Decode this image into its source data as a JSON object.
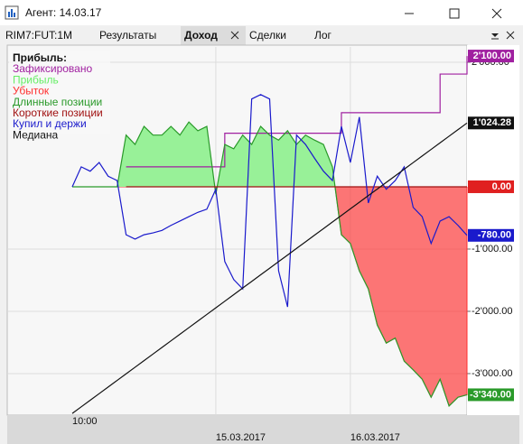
{
  "window_title": "Агент: 14.03.17",
  "tabs": [
    "RIM7:FUT:1M",
    "Результаты",
    "Доход",
    "Сделки",
    "Лог"
  ],
  "active_tab": 2,
  "chart_data": {
    "type": "line",
    "legend_title": "Прибыль:",
    "categories": [
      "10:00",
      null,
      null,
      null,
      null,
      null,
      null,
      null,
      null,
      null,
      null,
      null,
      null,
      null,
      null,
      null,
      "15.03.2017",
      null,
      null,
      null,
      null,
      null,
      null,
      null,
      null,
      null,
      null,
      null,
      null,
      null,
      null,
      "16.03.2017",
      null,
      null,
      null,
      null,
      null,
      null,
      null,
      null,
      null,
      null,
      null,
      null,
      null
    ],
    "ylim": [
      -3667,
      2246
    ],
    "yticks": [
      {
        "value": 2000,
        "label": "2'000.00"
      },
      {
        "value": -1000,
        "label": "-1'000.00"
      },
      {
        "value": -2000,
        "label": "-2'000.00"
      },
      {
        "value": -3000,
        "label": "-3'000.00"
      }
    ],
    "grid": true,
    "legend": "top-left",
    "series": [
      {
        "name": "Зафиксировано",
        "color": "#a020a0",
        "style": "step",
        "values": [
          null,
          null,
          null,
          null,
          null,
          null,
          320,
          320,
          320,
          320,
          320,
          320,
          320,
          320,
          320,
          320,
          320,
          860,
          860,
          860,
          860,
          860,
          860,
          860,
          860,
          860,
          860,
          860,
          860,
          860,
          1190,
          1190,
          1190,
          1190,
          1190,
          1190,
          1190,
          1190,
          1190,
          1190,
          1190,
          1810,
          1810,
          1810,
          2100
        ],
        "value_labels": [
          null,
          null,
          null,
          null,
          null,
          null,
          null,
          null,
          null,
          null,
          null,
          null,
          null,
          null,
          null,
          null,
          null,
          null,
          null,
          null,
          null,
          null,
          null,
          null,
          null,
          null,
          null,
          null,
          null,
          null,
          null,
          null,
          null,
          null,
          null,
          null,
          null,
          null,
          null,
          null,
          null,
          null,
          null,
          null,
          "2'100.00"
        ]
      },
      {
        "name": "Прибыль",
        "color": "#66ee66",
        "style": "fill-above"
      },
      {
        "name": "Убыток",
        "color": "#ff3030",
        "style": "fill-below"
      },
      {
        "name": "Длинные позиции",
        "color": "#2a9a2a",
        "style": "line",
        "values": [
          0,
          0,
          0,
          0,
          0,
          0,
          830,
          680,
          970,
          830,
          830,
          970,
          830,
          1040,
          900,
          970,
          -120,
          680,
          610,
          830,
          680,
          970,
          830,
          750,
          900,
          680,
          830,
          750,
          680,
          320,
          -770,
          -910,
          -1350,
          -1640,
          -2220,
          -2510,
          -2430,
          -2800,
          -2940,
          -3090,
          -3380,
          -3090,
          -3520,
          -3380,
          -3340
        ],
        "value_labels": [
          null,
          null,
          null,
          null,
          null,
          null,
          null,
          null,
          null,
          null,
          null,
          null,
          null,
          null,
          null,
          null,
          null,
          null,
          null,
          null,
          null,
          null,
          null,
          null,
          null,
          null,
          null,
          null,
          null,
          null,
          null,
          null,
          null,
          null,
          null,
          null,
          null,
          null,
          null,
          null,
          null,
          null,
          null,
          null,
          "-3'340.00"
        ]
      },
      {
        "name": "Короткие позиции",
        "color": "#a01010",
        "style": "line",
        "tag_color": "#e02020",
        "values": [
          null,
          null,
          null,
          null,
          null,
          null,
          0,
          0,
          0,
          0,
          0,
          0,
          0,
          0,
          0,
          0,
          0,
          0,
          0,
          0,
          0,
          0,
          0,
          0,
          0,
          0,
          0,
          0,
          0,
          0,
          0,
          0,
          0,
          0,
          0,
          0,
          0,
          0,
          0,
          0,
          0,
          0,
          0,
          0,
          0
        ],
        "value_labels": [
          null,
          null,
          null,
          null,
          null,
          null,
          null,
          null,
          null,
          null,
          null,
          null,
          null,
          null,
          null,
          null,
          null,
          null,
          null,
          null,
          null,
          null,
          null,
          null,
          null,
          null,
          null,
          null,
          null,
          null,
          null,
          null,
          null,
          null,
          null,
          null,
          null,
          null,
          null,
          null,
          null,
          null,
          null,
          null,
          "0.00"
        ]
      },
      {
        "name": "Купил и держи",
        "color": "#1a1acc",
        "style": "line",
        "values": [
          0,
          320,
          250,
          390,
          170,
          100,
          -770,
          -840,
          -770,
          -740,
          -700,
          -620,
          -550,
          -480,
          -410,
          -360,
          -40,
          -1200,
          -1490,
          -1640,
          1410,
          1480,
          1410,
          -1350,
          -1930,
          830,
          680,
          460,
          250,
          100,
          970,
          390,
          1120,
          -260,
          170,
          -40,
          100,
          320,
          -330,
          -480,
          -910,
          -550,
          -480,
          -620,
          -780
        ],
        "value_labels": [
          null,
          null,
          null,
          null,
          null,
          null,
          null,
          null,
          null,
          null,
          null,
          null,
          null,
          null,
          null,
          null,
          null,
          null,
          null,
          null,
          null,
          null,
          null,
          null,
          null,
          null,
          null,
          null,
          null,
          null,
          null,
          null,
          null,
          null,
          null,
          null,
          null,
          null,
          null,
          null,
          null,
          null,
          null,
          null,
          "-780.00"
        ]
      },
      {
        "name": "Медиана",
        "color": "#111111",
        "style": "line",
        "values": [
          -3640,
          -3534,
          -3428,
          -3322,
          -3216,
          -3110,
          -3004,
          -2898,
          -2792,
          -2686,
          -2580,
          -2474,
          -2368,
          -2262,
          -2156,
          -2050,
          -1944,
          -1838,
          -1732,
          -1626,
          -1520,
          -1414,
          -1308,
          -1202,
          -1096,
          -990,
          -884,
          -778,
          -672,
          -566,
          -460,
          -354,
          -248,
          -142,
          -36,
          70,
          176,
          282,
          388,
          494,
          600,
          706,
          812,
          918,
          1024.28
        ],
        "value_labels": [
          null,
          null,
          null,
          null,
          null,
          null,
          null,
          null,
          null,
          null,
          null,
          null,
          null,
          null,
          null,
          null,
          null,
          null,
          null,
          null,
          null,
          null,
          null,
          null,
          null,
          null,
          null,
          null,
          null,
          null,
          null,
          null,
          null,
          null,
          null,
          null,
          null,
          null,
          null,
          null,
          null,
          null,
          null,
          null,
          "1'024.28"
        ]
      }
    ]
  }
}
